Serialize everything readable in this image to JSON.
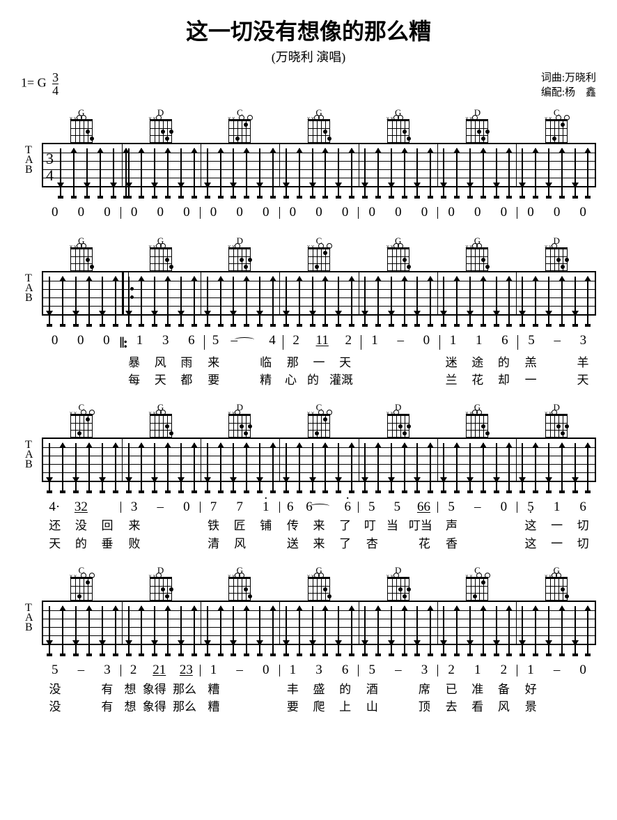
{
  "title": "这一切没有想像的那么糟",
  "subtitle": "(万晓利  演唱)",
  "key": "1= G",
  "timesig_top": "3",
  "timesig_bot": "4",
  "credits": {
    "line1": "词曲:万晓利",
    "line2": "编配:杨　鑫"
  },
  "chord_diagram": {
    "w": 30,
    "h": 30
  },
  "tab_staff_height": 60,
  "barline_pct": [
    14.28,
    28.57,
    42.85,
    57.14,
    71.42,
    85.71
  ],
  "arrows_per_bar": [
    "down",
    "up",
    "down",
    "up",
    "down",
    "up"
  ],
  "systems": [
    {
      "first": true,
      "chords": [
        "G",
        "D",
        "C",
        "G",
        "G",
        "D",
        "C"
      ],
      "bars": 7,
      "nums": [
        [
          "0",
          "0",
          "0"
        ],
        [
          "0",
          "0",
          "0"
        ],
        [
          "0",
          "0",
          "0"
        ],
        [
          "0",
          "0",
          "0"
        ],
        [
          "0",
          "0",
          "0"
        ],
        [
          "0",
          "0",
          "0"
        ],
        [
          "0",
          "0",
          "0"
        ]
      ],
      "lyrics1": null,
      "lyrics2": null
    },
    {
      "chords": [
        "G",
        "G",
        "D",
        "C",
        "G",
        "G",
        "D"
      ],
      "bars": 7,
      "repeat_after_bar1": true,
      "nums_pre": [
        "0",
        "0",
        "0"
      ],
      "nums": [
        [
          "1",
          "3",
          "6"
        ],
        [
          "5",
          "–",
          "4"
        ],
        [
          "2",
          "11",
          "2"
        ],
        [
          "1",
          "–",
          "0"
        ],
        [
          "1",
          "1",
          "6"
        ],
        [
          "5",
          "–",
          "3"
        ]
      ],
      "tie_bar": 2,
      "lyrics1": [
        [
          "",
          "",
          ""
        ],
        [
          "暴",
          "风",
          "雨"
        ],
        [
          "来",
          "",
          "临"
        ],
        [
          "那",
          "一",
          "天"
        ],
        [
          "",
          "",
          ""
        ],
        [
          "迷",
          "途",
          "的"
        ],
        [
          "羔",
          "",
          "羊"
        ]
      ],
      "lyrics2": [
        [
          "",
          "",
          ""
        ],
        [
          "每",
          "天",
          "都"
        ],
        [
          "要",
          "",
          "精"
        ],
        [
          "心",
          "的",
          "灌溉"
        ],
        [
          "",
          "",
          ""
        ],
        [
          "兰",
          "花",
          "却"
        ],
        [
          "一",
          "",
          "天"
        ]
      ]
    },
    {
      "chords": [
        "C",
        "G",
        "D",
        "C",
        "D",
        "G",
        "D"
      ],
      "bars": 7,
      "nums": [
        [
          "4·",
          "32",
          ""
        ],
        [
          "3",
          "–",
          "0"
        ],
        [
          "7",
          "7",
          "i"
        ],
        [
          "6",
          "6",
          "6i"
        ],
        [
          "5",
          "5",
          "66"
        ],
        [
          "5",
          "–",
          "0"
        ],
        [
          "5.",
          "1",
          "6"
        ]
      ],
      "tie_bar": 3,
      "lyrics1": [
        [
          "还",
          "没",
          "回"
        ],
        [
          "来",
          "",
          ""
        ],
        [
          "铁",
          "匠",
          "铺"
        ],
        [
          "传",
          "来",
          "了"
        ],
        [
          "叮",
          "当",
          "叮当"
        ],
        [
          "声",
          "",
          ""
        ],
        [
          "这",
          "一",
          "切"
        ]
      ],
      "lyrics2": [
        [
          "天",
          "的",
          "垂"
        ],
        [
          "败",
          "",
          ""
        ],
        [
          "清",
          "风",
          ""
        ],
        [
          "送",
          "来",
          "了"
        ],
        [
          "杏",
          "",
          "花"
        ],
        [
          "香",
          "",
          ""
        ],
        [
          "这",
          "一",
          "切"
        ]
      ]
    },
    {
      "chords": [
        "C",
        "D",
        "G",
        "G",
        "D",
        "C",
        "G"
      ],
      "bars": 7,
      "nums": [
        [
          "5",
          "–",
          "3"
        ],
        [
          "2",
          "21",
          "23"
        ],
        [
          "1",
          "–",
          "0"
        ],
        [
          "1",
          "3",
          "6"
        ],
        [
          "5",
          "–",
          "3"
        ],
        [
          "2",
          "1",
          "2"
        ],
        [
          "1",
          "–",
          "0"
        ]
      ],
      "lyrics1": [
        [
          "没",
          "",
          "有"
        ],
        [
          "想",
          "象得",
          "那么"
        ],
        [
          "糟",
          "",
          ""
        ],
        [
          "丰",
          "盛",
          "的"
        ],
        [
          "酒",
          "",
          "席"
        ],
        [
          "已",
          "准",
          "备"
        ],
        [
          "好",
          "",
          ""
        ]
      ],
      "lyrics2": [
        [
          "没",
          "",
          "有"
        ],
        [
          "想",
          "象得",
          "那么"
        ],
        [
          "糟",
          "",
          ""
        ],
        [
          "要",
          "爬",
          "上"
        ],
        [
          "山",
          "",
          "顶"
        ],
        [
          "去",
          "看",
          "风"
        ],
        [
          "景",
          "",
          ""
        ]
      ]
    }
  ],
  "chord_shapes": {
    "G": {
      "mutes": [
        0,
        1
      ],
      "opens": [
        2,
        3
      ],
      "dots": [
        [
          4,
          2
        ],
        [
          5,
          3
        ]
      ]
    },
    "D": {
      "mutes": [
        0,
        1
      ],
      "opens": [
        2
      ],
      "dots": [
        [
          3,
          2
        ],
        [
          4,
          3
        ],
        [
          5,
          2
        ]
      ]
    },
    "C": {
      "mutes": [
        0,
        1
      ],
      "opens": [
        3,
        5
      ],
      "dots": [
        [
          2,
          3
        ],
        [
          4,
          1
        ]
      ]
    }
  }
}
